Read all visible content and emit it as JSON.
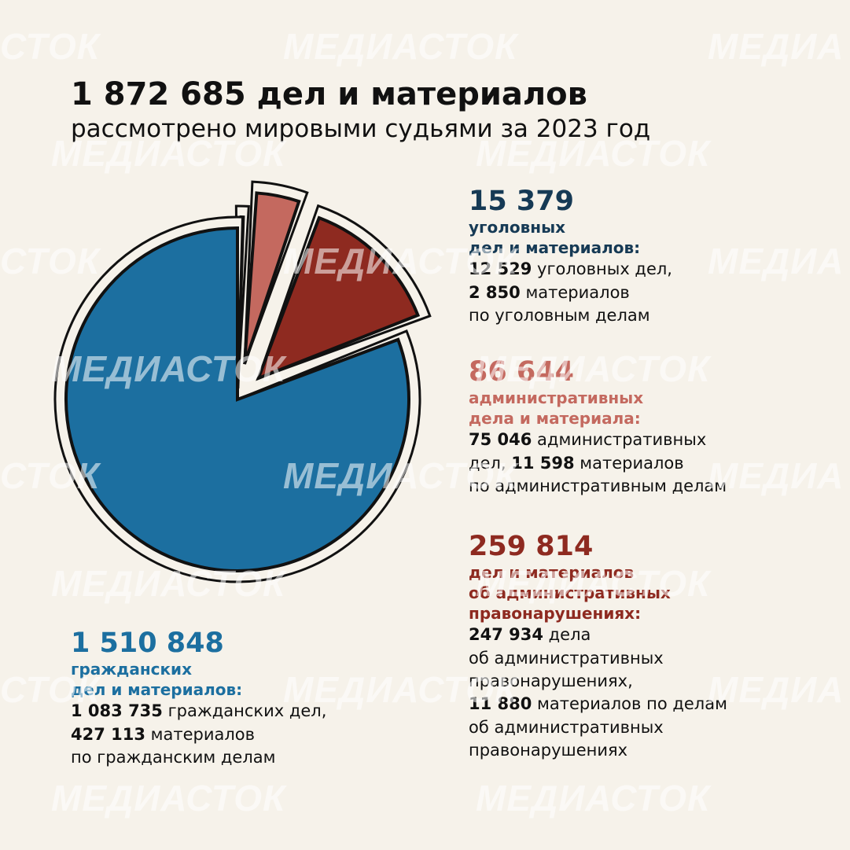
{
  "title": "1 872 685 дел и материалов",
  "subtitle": "рассмотрено мировыми судьями за 2023 год",
  "watermark": "МЕДИАСТОК",
  "watermark_short": "СТОК",
  "watermark_cut": "МЕДИА",
  "colors": {
    "background": "#f6f2ea",
    "criminal": "#163a55",
    "administrative": "#c4695f",
    "offenses": "#8e2a20",
    "civil": "#1c6fa0",
    "outline": "#111111"
  },
  "chart_data": {
    "type": "pie",
    "title": "1 872 685 дел и материалов",
    "subtitle": "рассмотрено мировыми судьями за 2023 год",
    "total": 1872685,
    "slices": [
      {
        "key": "criminal",
        "label": "уголовных дел и материалов",
        "value": 15379,
        "color": "#163a55",
        "exploded": true
      },
      {
        "key": "administrative",
        "label": "административных дела и материала",
        "value": 86644,
        "color": "#c4695f",
        "exploded": true
      },
      {
        "key": "offenses",
        "label": "дел и материалов об административных правонарушениях",
        "value": 259814,
        "color": "#8e2a20",
        "exploded": true
      },
      {
        "key": "civil",
        "label": "гражданских дел и материалов",
        "value": 1510848,
        "color": "#1c6fa0",
        "exploded": false
      }
    ]
  },
  "criminal": {
    "value": "15 379",
    "heading1": "уголовных",
    "heading2": "дел и материалов:",
    "l1_num": "12 529",
    "l1_text": " уголовных дел,",
    "l2_num": "2 850",
    "l2_text": " материалов",
    "l3_text": "по уголовным делам"
  },
  "administrative": {
    "value": "86 644",
    "heading1": "административных",
    "heading2": "дела и материала:",
    "l1_num": "75 046",
    "l1_text": " административных",
    "l2_pre": "дел, ",
    "l2_num": "11 598",
    "l2_text": " материалов",
    "l3_text": "по административным делам"
  },
  "offenses": {
    "value": "259 814",
    "heading1": "дел и материалов",
    "heading2": "об административных",
    "heading3": "правонарушениях:",
    "l1_num": "247 934",
    "l1_text": " дела",
    "l2_text": "об административных",
    "l3_text": "правонарушениях,",
    "l4_num": "11 880",
    "l4_text": " материалов по делам",
    "l5_text": "об административных",
    "l6_text": "правонарушениях"
  },
  "civil": {
    "value": "1 510 848",
    "heading1": "гражданских",
    "heading2": "дел и материалов:",
    "l1_num": "1 083 735",
    "l1_text": " гражданских дел,",
    "l2_num": "427 113",
    "l2_text": " материалов",
    "l3_text": "по гражданским делам"
  }
}
